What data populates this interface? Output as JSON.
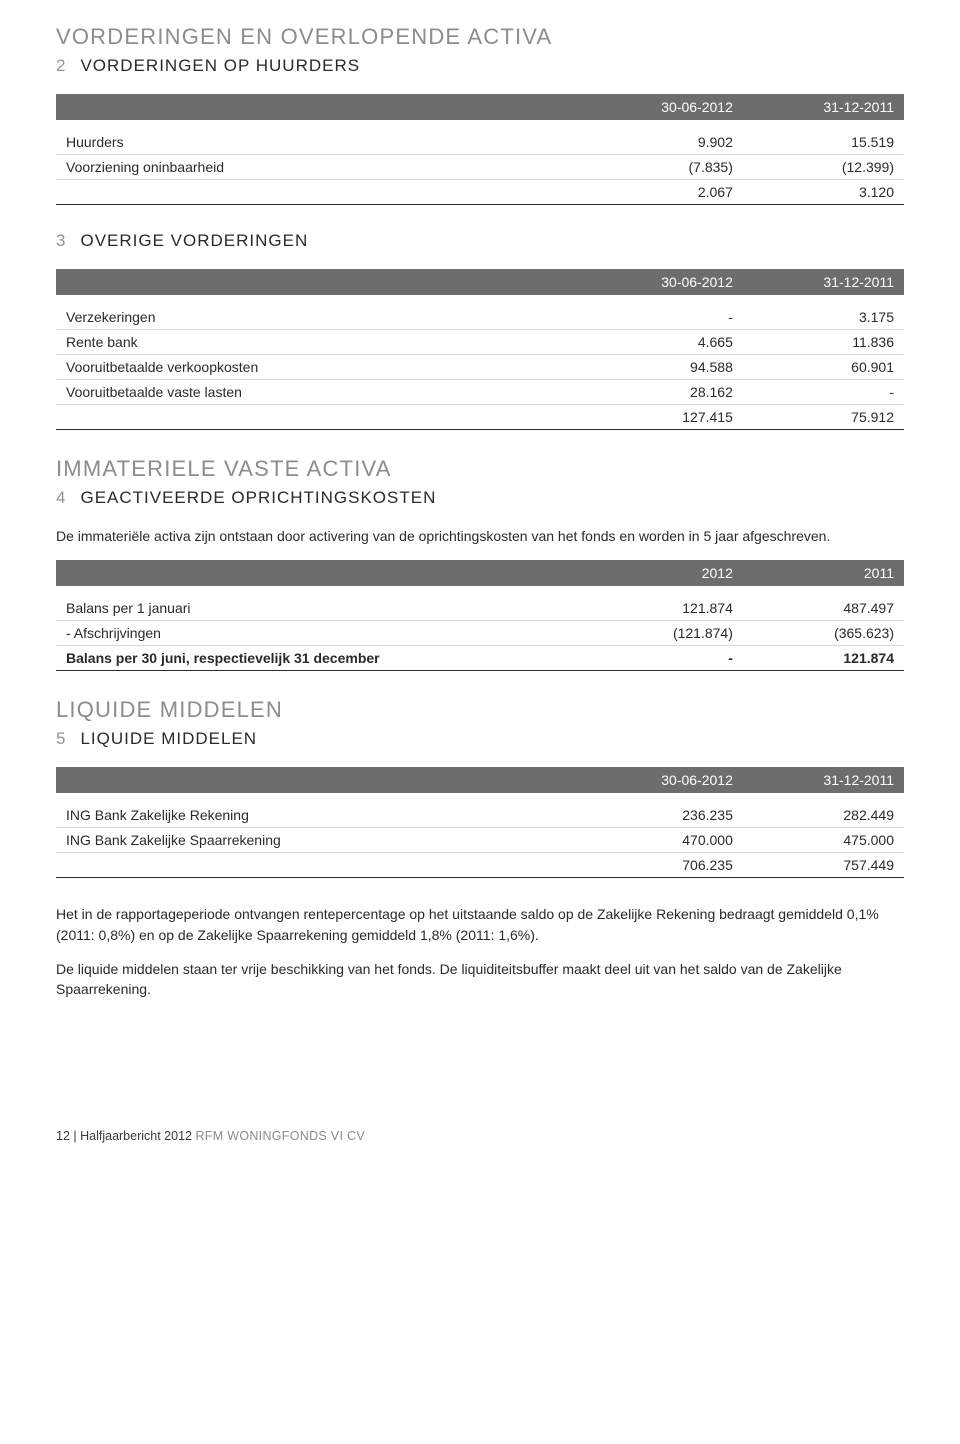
{
  "sectionA": {
    "title": "VORDERINGEN EN OVERLOPENDE ACTIVA",
    "sub": {
      "num": "2",
      "title": "VORDERINGEN OP HUURDERS"
    },
    "table": {
      "columns": [
        "30-06-2012",
        "31-12-2011"
      ],
      "rows": [
        {
          "label": "Huurders",
          "v1": "9.902",
          "v2": "15.519"
        },
        {
          "label": "Voorziening oninbaarheid",
          "v1": "(7.835)",
          "v2": "(12.399)"
        }
      ],
      "total": {
        "label": "",
        "v1": "2.067",
        "v2": "3.120"
      }
    }
  },
  "sectionB": {
    "sub": {
      "num": "3",
      "title": "OVERIGE VORDERINGEN"
    },
    "table": {
      "columns": [
        "30-06-2012",
        "31-12-2011"
      ],
      "rows": [
        {
          "label": "Verzekeringen",
          "v1": "-",
          "v2": "3.175"
        },
        {
          "label": "Rente bank",
          "v1": "4.665",
          "v2": "11.836"
        },
        {
          "label": "Vooruitbetaalde verkoopkosten",
          "v1": "94.588",
          "v2": "60.901"
        },
        {
          "label": "Vooruitbetaalde vaste lasten",
          "v1": "28.162",
          "v2": "-"
        }
      ],
      "total": {
        "label": "",
        "v1": "127.415",
        "v2": "75.912"
      }
    }
  },
  "sectionC": {
    "title": "IMMATERIELE VASTE ACTIVA",
    "sub": {
      "num": "4",
      "title": "GEACTIVEERDE OPRICHTINGSKOSTEN"
    },
    "paragraph": "De immateriële activa zijn ontstaan door activering van de oprichtingskosten van het fonds en worden in 5 jaar afgeschreven.",
    "table": {
      "columns": [
        "2012",
        "2011"
      ],
      "rows": [
        {
          "label": "Balans per 1 januari",
          "v1": "121.874",
          "v2": "487.497"
        },
        {
          "label": "- Afschrijvingen",
          "v1": "(121.874)",
          "v2": "(365.623)"
        }
      ],
      "total": {
        "label": "Balans per 30 juni, respectievelijk 31 december",
        "v1": "-",
        "v2": "121.874"
      }
    }
  },
  "sectionD": {
    "title": "LIQUIDE MIDDELEN",
    "sub": {
      "num": "5",
      "title": "LIQUIDE MIDDELEN"
    },
    "table": {
      "columns": [
        "30-06-2012",
        "31-12-2011"
      ],
      "rows": [
        {
          "label": "ING Bank Zakelijke Rekening",
          "v1": "236.235",
          "v2": "282.449"
        },
        {
          "label": "ING Bank Zakelijke Spaarrekening",
          "v1": "470.000",
          "v2": "475.000"
        }
      ],
      "total": {
        "label": "",
        "v1": "706.235",
        "v2": "757.449"
      }
    },
    "para1": "Het in de rapportageperiode ontvangen rentepercentage op het uitstaande saldo op de Zakelijke Rekening bedraagt gemiddeld 0,1% (2011: 0,8%) en op de Zakelijke Spaarrekening gemiddeld 1,8% (2011: 1,6%).",
    "para2": "De liquide middelen staan ter vrije beschikking van het fonds. De liquiditeitsbuffer maakt deel uit van het saldo van de Zakelijke Spaarrekening."
  },
  "footer": {
    "page": "12",
    "sep": " | ",
    "doc": "Halfjaarbericht 2012 ",
    "sub": "RFM WONINGFONDS VI CV"
  }
}
